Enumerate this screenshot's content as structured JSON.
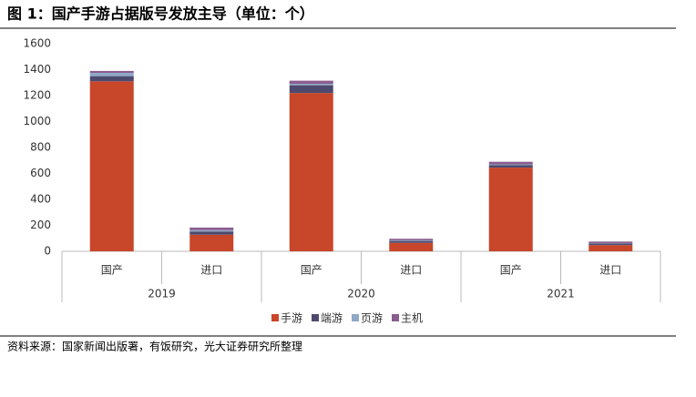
{
  "chart_data": {
    "type": "stacked-bar",
    "title": "图 1：国产手游占据版号发放主导（单位：个）",
    "source": "资料来源：国家新闻出版署，有饭研究，光大证券研究所整理",
    "categories": [
      "国产",
      "进口",
      "国产",
      "进口",
      "国产",
      "进口"
    ],
    "groups": [
      "2019",
      "2020",
      "2021"
    ],
    "series": [
      {
        "name": "手游",
        "color": "#c84629",
        "values": [
          1310,
          128,
          1220,
          65,
          645,
          48
        ]
      },
      {
        "name": "端游",
        "color": "#4e4a6e",
        "values": [
          40,
          25,
          60,
          15,
          20,
          12
        ]
      },
      {
        "name": "页游",
        "color": "#8ea9c8",
        "values": [
          25,
          10,
          10,
          5,
          5,
          3
        ]
      },
      {
        "name": "主机",
        "color": "#8a5d8f",
        "values": [
          15,
          20,
          25,
          12,
          20,
          12
        ]
      }
    ],
    "ylim": [
      0,
      1600
    ],
    "yticks": [
      0,
      200,
      400,
      600,
      800,
      1000,
      1200,
      1400,
      1600
    ],
    "legend": "bottom"
  }
}
